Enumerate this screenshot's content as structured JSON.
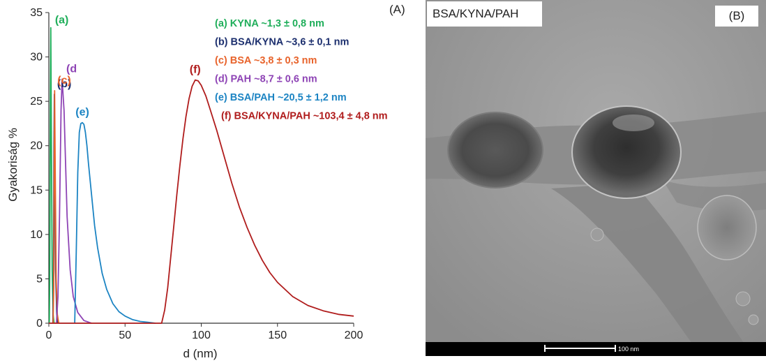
{
  "panel_a_label": "(A)",
  "panel_b_label": "(B)",
  "tem": {
    "title": "BSA/KYNA/PAH",
    "scale_text": "100 nm"
  },
  "colors": {
    "a": "#1fae5a",
    "b": "#1c2f6e",
    "c": "#e8632b",
    "d": "#8e44b5",
    "e": "#1c84c3",
    "f": "#b01c1c"
  },
  "chart_data": {
    "type": "line",
    "xlabel": "d (nm)",
    "ylabel": "Gyakoriság %",
    "xlim": [
      0,
      200
    ],
    "ylim": [
      0,
      35
    ],
    "xticks": [
      "0",
      "50",
      "100",
      "150",
      "200"
    ],
    "yticks": [
      "0",
      "5",
      "10",
      "15",
      "20",
      "25",
      "30",
      "35"
    ],
    "grid": false,
    "legend": [
      {
        "key": "a",
        "text": "(a)  KYNA ~1,3 ± 0,8 nm"
      },
      {
        "key": "b",
        "text": "(b)  BSA/KYNA ~3,6 ± 0,1 nm"
      },
      {
        "key": "c",
        "text": "(c)  BSA ~3,8 ± 0,3 nm"
      },
      {
        "key": "d",
        "text": "(d)  PAH ~8,7 ± 0,6 nm"
      },
      {
        "key": "e",
        "text": "(e)  BSA/PAH ~20,5 ± 1,2 nm"
      },
      {
        "key": "f",
        "text": "(f)  BSA/KYNA/PAH ~103,4 ± 4,8 nm"
      }
    ],
    "series": [
      {
        "key": "a",
        "peak_label": "(a)",
        "x": [
          0.3,
          0.6,
          1.0,
          1.3,
          1.7,
          2.2,
          2.8,
          3.5
        ],
        "y": [
          0,
          5,
          25,
          33.3,
          20,
          6,
          1,
          0
        ]
      },
      {
        "key": "b",
        "peak_label": "(b)",
        "x": [
          2.6,
          3.0,
          3.4,
          3.6,
          3.9,
          4.4,
          5.2,
          6.0
        ],
        "y": [
          0,
          4,
          20,
          25.8,
          18,
          6,
          1,
          0
        ]
      },
      {
        "key": "c",
        "peak_label": "(c)",
        "x": [
          2.8,
          3.2,
          3.6,
          3.8,
          4.2,
          4.8,
          5.6,
          6.5
        ],
        "y": [
          0,
          4,
          20,
          26.2,
          17,
          5,
          1,
          0
        ]
      },
      {
        "key": "d",
        "peak_label": "(d",
        "x": [
          5,
          6,
          7,
          8,
          8.7,
          10,
          11,
          12,
          14,
          16,
          19,
          23,
          28
        ],
        "y": [
          0,
          3,
          12,
          24,
          27.5,
          24,
          18,
          12,
          6,
          3,
          1.2,
          0.3,
          0
        ]
      },
      {
        "key": "e",
        "peak_label": "(e)",
        "x": [
          17,
          18,
          19,
          20,
          21,
          22,
          23,
          24,
          25,
          26,
          28,
          30,
          32,
          35,
          38,
          42,
          46,
          50,
          55,
          60,
          65,
          70
        ],
        "y": [
          0,
          8,
          17,
          21.5,
          22.5,
          22.6,
          22.4,
          21.5,
          20,
          18,
          14.5,
          11,
          8.5,
          5.6,
          3.8,
          2.2,
          1.3,
          0.8,
          0.4,
          0.2,
          0.1,
          0
        ]
      },
      {
        "key": "f",
        "peak_label": "(f)",
        "x": [
          0,
          70,
          74,
          76,
          78,
          80,
          82,
          84,
          86,
          88,
          90,
          92,
          94,
          96,
          98,
          100,
          103,
          106,
          110,
          115,
          120,
          125,
          130,
          135,
          140,
          145,
          150,
          160,
          170,
          180,
          190,
          200
        ],
        "y": [
          0,
          0,
          0,
          1.5,
          4,
          7.5,
          11,
          14.5,
          17.8,
          20.8,
          23.3,
          25.3,
          26.7,
          27.4,
          27.3,
          26.8,
          25.6,
          24,
          21.8,
          18.8,
          15.8,
          13.1,
          10.8,
          8.8,
          7.1,
          5.7,
          4.6,
          3.0,
          2.0,
          1.4,
          1.0,
          0.8
        ]
      }
    ]
  }
}
